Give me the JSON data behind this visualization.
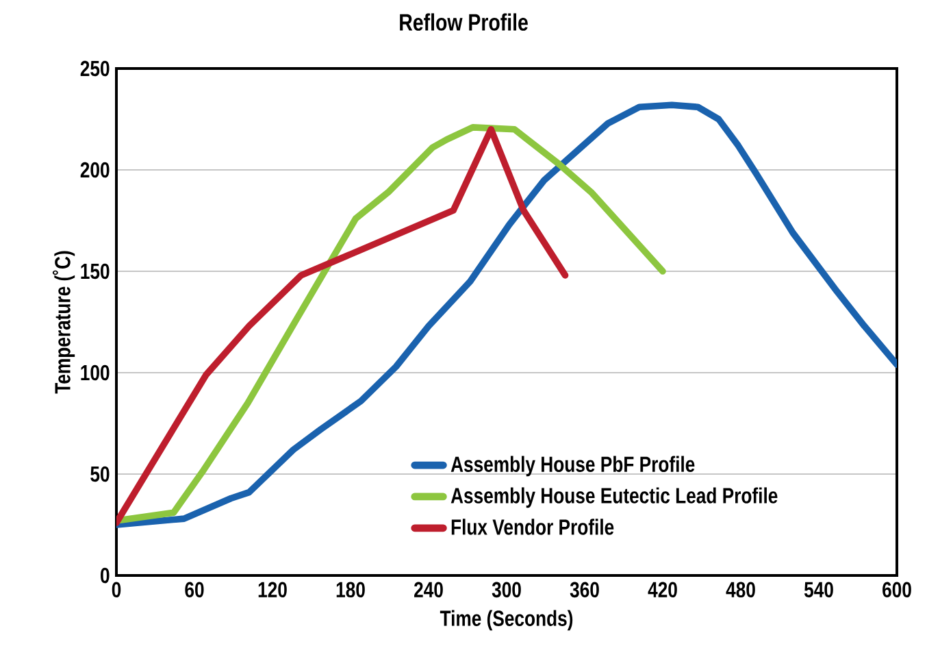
{
  "chart_data": {
    "type": "line",
    "title": "Reflow Profile",
    "xlabel": "Time (Seconds)",
    "ylabel": "Temperature (˚C)",
    "xlim": [
      0,
      600
    ],
    "xticks": [
      0,
      60,
      120,
      180,
      240,
      300,
      360,
      420,
      480,
      540,
      600
    ],
    "ylim": [
      0,
      250
    ],
    "yticks": [
      0,
      50,
      100,
      150,
      200,
      250
    ],
    "grid": "y",
    "legend": "bottom right",
    "series": [
      {
        "name": "Assembly House PbF Profile",
        "color": "#1a62ae",
        "x": [
          0,
          52,
          88,
          102,
          136,
          157,
          188,
          215,
          240,
          272,
          302,
          329,
          378,
          402,
          427,
          447,
          463,
          478,
          492,
          520,
          554,
          575,
          600
        ],
        "values": [
          25,
          28,
          38,
          41,
          62,
          72,
          86,
          103,
          123,
          145,
          173,
          195,
          223,
          231,
          232,
          231,
          225,
          212,
          198,
          169,
          140,
          123,
          104
        ]
      },
      {
        "name": "Assembly House Eutectic Lead Profile",
        "color": "#8dc63f",
        "x": [
          0,
          44,
          66,
          101,
          140,
          184,
          209,
          243,
          254,
          274,
          306,
          340,
          365,
          420
        ],
        "values": [
          27,
          31,
          51,
          85,
          128,
          176,
          189,
          211,
          215,
          221,
          220,
          203,
          189,
          150
        ]
      },
      {
        "name": "Flux Vendor Profile",
        "color": "#be1e2d",
        "x": [
          0,
          69,
          102,
          142,
          259,
          288,
          313,
          345
        ],
        "values": [
          26,
          99,
          123,
          148,
          180,
          220,
          180,
          148
        ]
      }
    ]
  }
}
